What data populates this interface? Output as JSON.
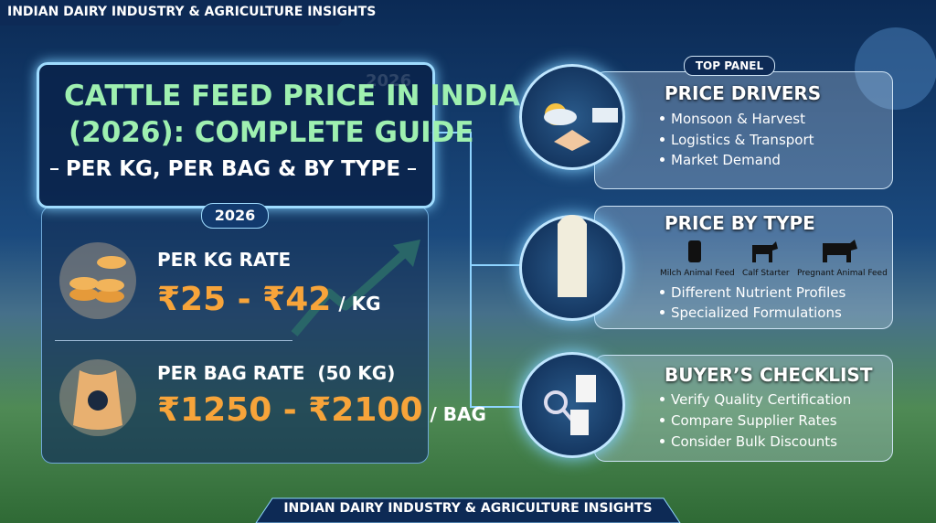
{
  "header": {
    "tag": "INDIAN DAIRY INDUSTRY & AGRICULTURE INSIGHTS"
  },
  "title": {
    "watermark": "2026",
    "line1": "CATTLE FEED PRICE IN INDIA",
    "line2": "(2026): COMPLETE GUIDE",
    "subtitle": "PER KG, PER BAG & BY TYPE"
  },
  "rates": {
    "badge": "2026",
    "per_kg": {
      "label": "PER KG RATE",
      "value": "₹25 - ₹42",
      "unit": "/ KG"
    },
    "per_bag": {
      "label": "PER BAG RATE  (50 KG)",
      "value": "₹1250 - ₹2100",
      "unit": "/ BAG"
    }
  },
  "panels": {
    "tag": "TOP PANEL",
    "drivers": {
      "title": "PRICE DRIVERS",
      "items": [
        "Monsoon & Harvest",
        "Logistics & Transport",
        "Market Demand"
      ]
    },
    "by_type": {
      "title": "PRICE BY TYPE",
      "types": [
        "Milch Animal Feed",
        "Calf Starter",
        "Pregnant Animal Feed"
      ],
      "items": [
        "Different Nutrient Profiles",
        "Specialized Formulations"
      ]
    },
    "checklist": {
      "title": "BUYER’S CHECKLIST",
      "items": [
        "Verify Quality Certification",
        "Compare Supplier Rates",
        "Consider Bulk Discounts"
      ]
    }
  },
  "footer": {
    "tag": "INDIAN DAIRY INDUSTRY & AGRICULTURE INSIGHTS"
  }
}
